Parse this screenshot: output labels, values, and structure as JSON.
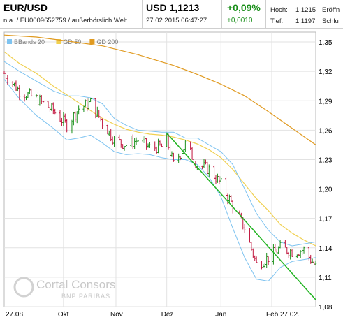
{
  "header": {
    "title": "EUR/USD",
    "subtitle": "n.a. / EU0009652759 / außerbörslich Welt",
    "price": "USD 1,1213",
    "timestamp": "27.02.2015 06:47:27",
    "change_pct": "+0,09%",
    "change_abs": "+0,0010",
    "high_label": "Hoch:",
    "high_value": "1,1215",
    "low_label": "Tief:",
    "low_value": "1,1197",
    "open_label": "Eröffn",
    "close_label": "Schlu"
  },
  "colors": {
    "price_up": "#1a8f1a",
    "price_down": "#c0143c",
    "bbands": "#7ec3f0",
    "gd50": "#f0d050",
    "gd200": "#e09a20",
    "trendline": "#22b422",
    "watermark": "#c8c8c8"
  },
  "watermark": {
    "line1": "Cortal Consors",
    "line2": "BNP PARIBAS"
  },
  "chart_data": {
    "type": "line",
    "legend": [
      "BBands 20",
      "GD 50",
      "GD 200"
    ],
    "legend_position": "top-left",
    "x_tick_labels": [
      "27.08.",
      "Okt",
      "Nov",
      "Dez",
      "Jan",
      "Feb 27.02."
    ],
    "y_tick_labels": [
      "1,35",
      "1,32",
      "1,29",
      "1,26",
      "1,23",
      "1,20",
      "1,17",
      "1,14",
      "1,11",
      "1,08"
    ],
    "y_ticks": [
      1.35,
      1.32,
      1.29,
      1.26,
      1.23,
      1.2,
      1.17,
      1.14,
      1.11,
      1.08
    ],
    "ylim": [
      1.08,
      1.36
    ],
    "xlim": [
      "2014-08-27",
      "2015-02-27"
    ],
    "grid": true,
    "price_series": {
      "x": [
        "2014-08-27",
        "2014-09-05",
        "2014-09-15",
        "2014-09-25",
        "2014-10-03",
        "2014-10-10",
        "2014-10-17",
        "2014-10-24",
        "2014-10-31",
        "2014-11-07",
        "2014-11-14",
        "2014-11-21",
        "2014-11-28",
        "2014-12-01",
        "2014-12-05",
        "2014-12-12",
        "2014-12-19",
        "2014-12-26",
        "2015-01-02",
        "2015-01-09",
        "2015-01-16",
        "2015-01-23",
        "2015-01-30",
        "2015-02-06",
        "2015-02-13",
        "2015-02-20",
        "2015-02-27"
      ],
      "values": [
        1.318,
        1.3,
        1.292,
        1.28,
        1.265,
        1.282,
        1.288,
        1.268,
        1.25,
        1.245,
        1.25,
        1.242,
        1.243,
        1.25,
        1.225,
        1.245,
        1.225,
        1.22,
        1.205,
        1.183,
        1.16,
        1.123,
        1.13,
        1.14,
        1.136,
        1.138,
        1.121
      ]
    },
    "series": [
      {
        "name": "BBands 20",
        "x": [
          "2014-08-27",
          "2014-09-05",
          "2014-09-15",
          "2014-09-25",
          "2014-10-03",
          "2014-10-10",
          "2014-10-17",
          "2014-10-24",
          "2014-10-31",
          "2014-11-07",
          "2014-11-14",
          "2014-11-21",
          "2014-11-28",
          "2014-12-05",
          "2014-12-12",
          "2014-12-19",
          "2014-12-26",
          "2015-01-02",
          "2015-01-09",
          "2015-01-16",
          "2015-01-23",
          "2015-01-30",
          "2015-02-06",
          "2015-02-13",
          "2015-02-20",
          "2015-02-27"
        ],
        "upper": [
          1.33,
          1.32,
          1.31,
          1.3,
          1.295,
          1.295,
          1.293,
          1.287,
          1.272,
          1.265,
          1.26,
          1.259,
          1.258,
          1.258,
          1.252,
          1.252,
          1.245,
          1.238,
          1.225,
          1.2,
          1.175,
          1.158,
          1.146,
          1.142,
          1.144,
          1.146
        ],
        "lower": [
          1.312,
          1.292,
          1.275,
          1.262,
          1.25,
          1.252,
          1.255,
          1.247,
          1.238,
          1.235,
          1.236,
          1.235,
          1.232,
          1.23,
          1.23,
          1.225,
          1.212,
          1.192,
          1.16,
          1.13,
          1.108,
          1.106,
          1.12,
          1.126,
          1.128,
          1.13
        ]
      },
      {
        "name": "GD 50",
        "x": [
          "2014-08-27",
          "2014-09-05",
          "2014-09-15",
          "2014-09-25",
          "2014-10-03",
          "2014-10-10",
          "2014-10-17",
          "2014-10-24",
          "2014-10-31",
          "2014-11-07",
          "2014-11-14",
          "2014-11-21",
          "2014-11-28",
          "2014-12-05",
          "2014-12-12",
          "2014-12-19",
          "2014-12-26",
          "2015-01-02",
          "2015-01-09",
          "2015-01-16",
          "2015-01-23",
          "2015-01-30",
          "2015-02-06",
          "2015-02-13",
          "2015-02-20",
          "2015-02-27"
        ],
        "values": [
          1.34,
          1.328,
          1.318,
          1.305,
          1.296,
          1.288,
          1.28,
          1.272,
          1.266,
          1.261,
          1.258,
          1.256,
          1.255,
          1.253,
          1.25,
          1.246,
          1.24,
          1.232,
          1.22,
          1.205,
          1.19,
          1.178,
          1.164,
          1.155,
          1.148,
          1.142
        ]
      },
      {
        "name": "GD 200",
        "x": [
          "2014-08-27",
          "2014-09-15",
          "2014-10-03",
          "2014-10-24",
          "2014-11-14",
          "2014-12-05",
          "2014-12-19",
          "2015-01-02",
          "2015-01-16",
          "2015-01-30",
          "2015-02-13",
          "2015-02-27"
        ],
        "values": [
          1.357,
          1.355,
          1.351,
          1.346,
          1.337,
          1.326,
          1.317,
          1.307,
          1.295,
          1.279,
          1.262,
          1.245
        ]
      }
    ],
    "trendline": {
      "x": [
        "2014-12-01",
        "2015-02-27"
      ],
      "values": [
        1.257,
        1.087
      ]
    }
  }
}
